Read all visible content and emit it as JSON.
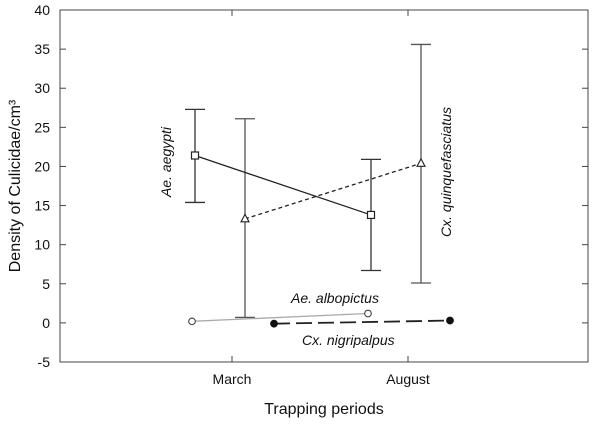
{
  "chart_data": {
    "type": "line",
    "title": "",
    "xlabel": "Trapping periods",
    "ylabel": "Density of Culicidae/cm³",
    "categories": [
      "March",
      "August"
    ],
    "ylim": [
      -5,
      40
    ],
    "yticks": [
      "-5",
      "0",
      "5",
      "10",
      "15",
      "20",
      "25",
      "30",
      "35",
      "40"
    ],
    "grid": false,
    "series": [
      {
        "name": "Ae. aegypti",
        "marker": "square",
        "line": "solid",
        "color": "#222222",
        "values": [
          21.4,
          13.8
        ],
        "error_low": [
          15.4,
          6.7
        ],
        "error_high": [
          27.3,
          20.9
        ]
      },
      {
        "name": "Cx. quinquefasciatus",
        "marker": "triangle",
        "line": "dashed",
        "color": "#222222",
        "values": [
          13.3,
          20.4
        ],
        "error_low": [
          0.7,
          5.1
        ],
        "error_high": [
          26.1,
          35.6
        ]
      },
      {
        "name": "Ae. albopictus",
        "marker": "open-circle",
        "line": "solid",
        "color": "#aaaaaa",
        "values": [
          0.2,
          1.2
        ]
      },
      {
        "name": "Cx. nigripalpus",
        "marker": "filled-circle",
        "line": "long-dash",
        "color": "#222222",
        "values": [
          -0.1,
          0.3
        ]
      }
    ]
  }
}
